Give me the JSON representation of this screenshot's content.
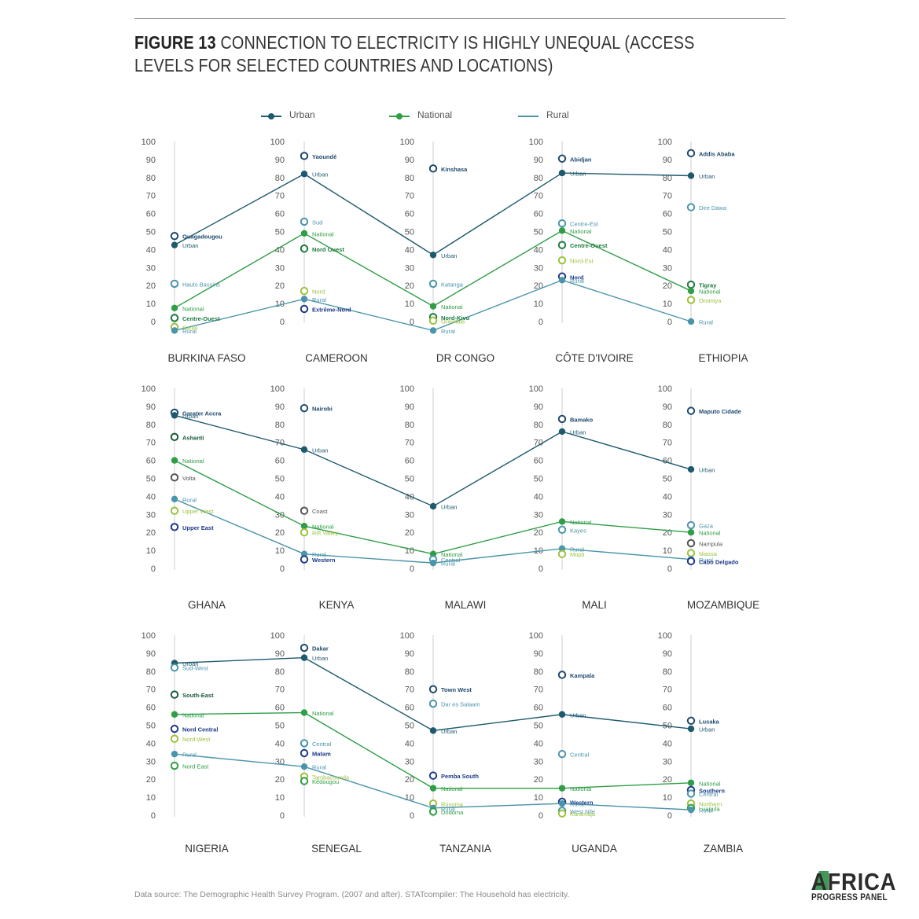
{
  "figure": {
    "title_lead": "FIGURE 13",
    "title_rest": "CONNECTION TO ELECTRICITY IS HIGHLY UNEQUAL (ACCESS LEVELS FOR SELECTED COUNTRIES AND LOCATIONS)",
    "source": "Data source: The Demographic Health Survey Program. (2007 and after). STATcompiler: The Household has electricity.",
    "logo_line1": "AFRICA",
    "logo_line2": "PROGRESS PANEL"
  },
  "colors": {
    "urban": "#1e5a6e",
    "national": "#2f9e46",
    "rural": "#4a95ab",
    "axis": "#d6d6d6",
    "tick": "#555555"
  },
  "chart_data": {
    "type": "line",
    "ylim": [
      0,
      100
    ],
    "yticks": [
      0,
      10,
      20,
      30,
      40,
      50,
      60,
      70,
      80,
      90,
      100
    ],
    "series": [
      {
        "name": "Urban",
        "key": "urban"
      },
      {
        "name": "National",
        "key": "national"
      },
      {
        "name": "Rural",
        "key": "rural"
      }
    ],
    "rows": [
      {
        "countries": [
          "BURKINA FASO",
          "CAMEROON",
          "DR CONGO",
          "CÔTE D'IVOIRE",
          "ETHIOPIA"
        ],
        "urban": [
          42.5,
          82,
          37,
          82.5,
          81
        ],
        "national": [
          7.5,
          49,
          8.5,
          50.5,
          17
        ],
        "rural": [
          -5,
          12.5,
          -5,
          23,
          0
        ],
        "points": [
          [
            {
              "label": "Ouagadougou",
              "value": 47.5,
              "color": "#1e4a6e",
              "bold": true
            },
            {
              "label": "Urban",
              "value": 42.5,
              "color": "#1e5a6e",
              "bold": false
            },
            {
              "label": "Hauts Bassins",
              "value": 21,
              "color": "#4a95ab",
              "bold": false
            },
            {
              "label": "National",
              "value": 7.5,
              "color": "#2f9e46",
              "bold": false
            },
            {
              "label": "Centre-Ouest",
              "value": 2,
              "color": "#1a7a3c",
              "bold": true
            },
            {
              "label": "Sahel",
              "value": -3,
              "color": "#9ac23a",
              "bold": false
            },
            {
              "label": "Rural",
              "value": -5,
              "color": "#4a95ab",
              "bold": false
            }
          ],
          [
            {
              "label": "Yaoundé",
              "value": 92,
              "color": "#1e4a6e",
              "bold": true
            },
            {
              "label": "Urban",
              "value": 82,
              "color": "#1e5a6e",
              "bold": false
            },
            {
              "label": "Sud",
              "value": 55.5,
              "color": "#4a95ab",
              "bold": false
            },
            {
              "label": "National",
              "value": 49,
              "color": "#2f9e46",
              "bold": false
            },
            {
              "label": "Nord Ouest",
              "value": 40.5,
              "color": "#1a7a3c",
              "bold": true
            },
            {
              "label": "Nord",
              "value": 17,
              "color": "#9ac23a",
              "bold": false
            },
            {
              "label": "Rural",
              "value": 12.5,
              "color": "#4a95ab",
              "bold": false
            },
            {
              "label": "Extrême-Nord",
              "value": 7,
              "color": "#1e3a8a",
              "bold": true
            }
          ],
          [
            {
              "label": "Kinshasa",
              "value": 85,
              "color": "#1e4a6e",
              "bold": true
            },
            {
              "label": "Urban",
              "value": 37,
              "color": "#1e5a6e",
              "bold": false
            },
            {
              "label": "Katanga",
              "value": 21,
              "color": "#4a95ab",
              "bold": false
            },
            {
              "label": "National",
              "value": 8.5,
              "color": "#2f9e46",
              "bold": false
            },
            {
              "label": "Nord-Kivu",
              "value": 2.5,
              "color": "#1a7a3c",
              "bold": true
            },
            {
              "label": "Orientale",
              "value": 0.5,
              "color": "#9ac23a",
              "bold": false
            },
            {
              "label": "Rural",
              "value": -5,
              "color": "#4a95ab",
              "bold": false
            }
          ],
          [
            {
              "label": "Abidjan",
              "value": 90.5,
              "color": "#1e4a6e",
              "bold": true
            },
            {
              "label": "Urban",
              "value": 82.5,
              "color": "#1e5a6e",
              "bold": false
            },
            {
              "label": "Centre-Est",
              "value": 54.5,
              "color": "#4a95ab",
              "bold": false
            },
            {
              "label": "National",
              "value": 50.5,
              "color": "#2f9e46",
              "bold": false
            },
            {
              "label": "Centre-Ouest",
              "value": 42.5,
              "color": "#1a7a3c",
              "bold": true
            },
            {
              "label": "Nord-Est",
              "value": 34,
              "color": "#9ac23a",
              "bold": false
            },
            {
              "label": "Nord",
              "value": 25,
              "color": "#1e3a8a",
              "bold": true
            },
            {
              "label": "Rural",
              "value": 23,
              "color": "#4a95ab",
              "bold": false
            }
          ],
          [
            {
              "label": "Addis Ababa",
              "value": 93.5,
              "color": "#1e4a6e",
              "bold": true
            },
            {
              "label": "Urban",
              "value": 81,
              "color": "#1e5a6e",
              "bold": false
            },
            {
              "label": "Dire Dawa",
              "value": 63.5,
              "color": "#4a95ab",
              "bold": false
            },
            {
              "label": "Tigray",
              "value": 20.5,
              "color": "#1a7a3c",
              "bold": true
            },
            {
              "label": "National",
              "value": 17,
              "color": "#2f9e46",
              "bold": false
            },
            {
              "label": "Oromiya",
              "value": 12,
              "color": "#9ac23a",
              "bold": false
            },
            {
              "label": "Rural",
              "value": 0,
              "color": "#4a95ab",
              "bold": false
            }
          ]
        ]
      },
      {
        "countries": [
          "GHANA",
          "KENYA",
          "MALAWI",
          "MALI",
          "MOZAMBIQUE"
        ],
        "urban": [
          85,
          66,
          34.5,
          76,
          55
        ],
        "national": [
          60,
          23.5,
          8,
          26,
          20
        ],
        "rural": [
          38.5,
          8,
          3,
          11,
          5
        ],
        "points": [
          [
            {
              "label": "Greater Accra",
              "value": 86.5,
              "color": "#1e4a6e",
              "bold": true
            },
            {
              "label": "Urban",
              "value": 85,
              "color": "#1e5a6e",
              "bold": false
            },
            {
              "label": "Ashanti",
              "value": 73,
              "color": "#1a5a3c",
              "bold": true
            },
            {
              "label": "National",
              "value": 60,
              "color": "#2f9e46",
              "bold": false
            },
            {
              "label": "Volta",
              "value": 50.5,
              "color": "#555555",
              "bold": false
            },
            {
              "label": "Rural",
              "value": 38.5,
              "color": "#4a95ab",
              "bold": false
            },
            {
              "label": "Upper West",
              "value": 32,
              "color": "#9ac23a",
              "bold": false
            },
            {
              "label": "Upper East",
              "value": 23,
              "color": "#1e3a8a",
              "bold": true
            }
          ],
          [
            {
              "label": "Nairobi",
              "value": 89,
              "color": "#1e4a6e",
              "bold": true
            },
            {
              "label": "Urban",
              "value": 66,
              "color": "#1e5a6e",
              "bold": false
            },
            {
              "label": "Coast",
              "value": 32,
              "color": "#555555",
              "bold": false
            },
            {
              "label": "National",
              "value": 23.5,
              "color": "#2f9e46",
              "bold": false
            },
            {
              "label": "Rift Valley",
              "value": 20,
              "color": "#9ac23a",
              "bold": false
            },
            {
              "label": "Rural",
              "value": 8,
              "color": "#4a95ab",
              "bold": false
            },
            {
              "label": "Western",
              "value": 5,
              "color": "#1e3a8a",
              "bold": true
            }
          ],
          [
            {
              "label": "Urban",
              "value": 34.5,
              "color": "#1e5a6e",
              "bold": false
            },
            {
              "label": "National",
              "value": 8,
              "color": "#2f9e46",
              "bold": false
            },
            {
              "label": "Central",
              "value": 5,
              "color": "#4a95ab",
              "bold": false
            },
            {
              "label": "Rural",
              "value": 3,
              "color": "#4a95ab",
              "bold": false
            }
          ],
          [
            {
              "label": "Bamako",
              "value": 83,
              "color": "#1e4a6e",
              "bold": true
            },
            {
              "label": "Urban",
              "value": 76,
              "color": "#1e5a6e",
              "bold": false
            },
            {
              "label": "National",
              "value": 26,
              "color": "#2f9e46",
              "bold": false
            },
            {
              "label": "Kayes",
              "value": 21.5,
              "color": "#4a95ab",
              "bold": false
            },
            {
              "label": "Rural",
              "value": 11,
              "color": "#4a95ab",
              "bold": false
            },
            {
              "label": "Mopti",
              "value": 8,
              "color": "#9ac23a",
              "bold": false
            }
          ],
          [
            {
              "label": "Maputo Cidade",
              "value": 87.5,
              "color": "#1e4a6e",
              "bold": true
            },
            {
              "label": "Urban",
              "value": 55,
              "color": "#1e5a6e",
              "bold": false
            },
            {
              "label": "Gaza",
              "value": 24,
              "color": "#4a95ab",
              "bold": false
            },
            {
              "label": "National",
              "value": 20,
              "color": "#2f9e46",
              "bold": false
            },
            {
              "label": "Nampula",
              "value": 14,
              "color": "#555555",
              "bold": false
            },
            {
              "label": "Niassa",
              "value": 8.5,
              "color": "#9ac23a",
              "bold": false
            },
            {
              "label": "Rural",
              "value": 5,
              "color": "#4a95ab",
              "bold": false
            },
            {
              "label": "Cabo Delgado",
              "value": 4,
              "color": "#1e3a8a",
              "bold": true
            }
          ]
        ]
      },
      {
        "countries": [
          "NIGERIA",
          "SENEGAL",
          "TANZANIA",
          "UGANDA",
          "ZAMBIA"
        ],
        "urban": [
          84.5,
          87.5,
          47,
          56,
          48
        ],
        "national": [
          56,
          57,
          15,
          15,
          18
        ],
        "rural": [
          34,
          27,
          4,
          6.5,
          3
        ],
        "points": [
          [
            {
              "label": "Urban",
              "value": 84.5,
              "color": "#1e5a6e",
              "bold": false
            },
            {
              "label": "Sud-West",
              "value": 82,
              "color": "#4a95ab",
              "bold": false
            },
            {
              "label": "South-East",
              "value": 67,
              "color": "#1a5a3c",
              "bold": true
            },
            {
              "label": "National",
              "value": 56,
              "color": "#2f9e46",
              "bold": false
            },
            {
              "label": "Nord Central",
              "value": 48,
              "color": "#1e3a8a",
              "bold": true
            },
            {
              "label": "Nord West",
              "value": 42.5,
              "color": "#9ac23a",
              "bold": false
            },
            {
              "label": "Rural",
              "value": 34,
              "color": "#4a95ab",
              "bold": false
            },
            {
              "label": "Nord East",
              "value": 27.5,
              "color": "#2f9e46",
              "bold": false
            }
          ],
          [
            {
              "label": "Dakar",
              "value": 93,
              "color": "#1e4a6e",
              "bold": true
            },
            {
              "label": "Urban",
              "value": 87.5,
              "color": "#1e5a6e",
              "bold": false
            },
            {
              "label": "National",
              "value": 57,
              "color": "#2f9e46",
              "bold": false
            },
            {
              "label": "Central",
              "value": 40,
              "color": "#4a95ab",
              "bold": false
            },
            {
              "label": "Matam",
              "value": 34.5,
              "color": "#1e3a8a",
              "bold": true
            },
            {
              "label": "Rural",
              "value": 27,
              "color": "#4a95ab",
              "bold": false
            },
            {
              "label": "Tambacounda",
              "value": 21.5,
              "color": "#9ac23a",
              "bold": false
            },
            {
              "label": "Kédougou",
              "value": 19,
              "color": "#2f9e46",
              "bold": false
            }
          ],
          [
            {
              "label": "Town West",
              "value": 70,
              "color": "#1e4a6e",
              "bold": true
            },
            {
              "label": "Dar es Salaam",
              "value": 62,
              "color": "#4a95ab",
              "bold": false
            },
            {
              "label": "Urban",
              "value": 47,
              "color": "#1e5a6e",
              "bold": false
            },
            {
              "label": "Pemba South",
              "value": 22,
              "color": "#1e3a8a",
              "bold": true
            },
            {
              "label": "National",
              "value": 15,
              "color": "#2f9e46",
              "bold": false
            },
            {
              "label": "Ruvuma",
              "value": 6.5,
              "color": "#9ac23a",
              "bold": false
            },
            {
              "label": "Rural",
              "value": 4,
              "color": "#4a95ab",
              "bold": false
            },
            {
              "label": "Dodoma",
              "value": 2,
              "color": "#2f9e46",
              "bold": false
            }
          ],
          [
            {
              "label": "Kampala",
              "value": 78,
              "color": "#1e4a6e",
              "bold": true
            },
            {
              "label": "Urban",
              "value": 56,
              "color": "#1e5a6e",
              "bold": false
            },
            {
              "label": "Central",
              "value": 34,
              "color": "#4a95ab",
              "bold": false
            },
            {
              "label": "National",
              "value": 15,
              "color": "#2f9e46",
              "bold": false
            },
            {
              "label": "Western",
              "value": 7.5,
              "color": "#1e3a8a",
              "bold": true
            },
            {
              "label": "Rural",
              "value": 6.5,
              "color": "#4a95ab",
              "bold": false
            },
            {
              "label": "West Nile",
              "value": 2.5,
              "color": "#4a95ab",
              "bold": false
            },
            {
              "label": "Karamaja",
              "value": 1,
              "color": "#9ac23a",
              "bold": false
            }
          ],
          [
            {
              "label": "Lusaka",
              "value": 52.5,
              "color": "#1e4a6e",
              "bold": true
            },
            {
              "label": "Urban",
              "value": 48,
              "color": "#1e5a6e",
              "bold": false
            },
            {
              "label": "National",
              "value": 18,
              "color": "#2f9e46",
              "bold": false
            },
            {
              "label": "Southern",
              "value": 14,
              "color": "#1e3a8a",
              "bold": true
            },
            {
              "label": "Central",
              "value": 12,
              "color": "#4a95ab",
              "bold": false
            },
            {
              "label": "Northern",
              "value": 6.5,
              "color": "#9ac23a",
              "bold": false
            },
            {
              "label": "Luapula",
              "value": 4,
              "color": "#2f9e46",
              "bold": false
            },
            {
              "label": "Rural",
              "value": 3,
              "color": "#4a95ab",
              "bold": false
            }
          ]
        ]
      }
    ]
  }
}
